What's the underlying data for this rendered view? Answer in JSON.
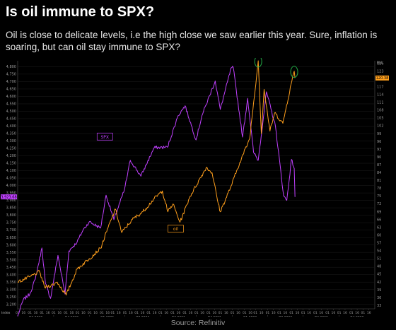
{
  "title": "Is oil immune to SPX?",
  "subtitle": "Oil is close to delicate levels, i.e the high close we saw earlier this year. Sure, inflation is soaring, but can oil stay immune to SPX?",
  "source": "Source: Refinitiv",
  "colors": {
    "spx": "#c040ff",
    "oil": "#ff9f1c",
    "background": "#000000",
    "highlight_circle": "#22a845"
  },
  "chart_data": {
    "type": "line",
    "xlim": [
      "2020-07-01",
      "2022-12-31"
    ],
    "left_axis": {
      "series": "SPX",
      "ticks": [
        3200,
        3250,
        3300,
        3350,
        3400,
        3450,
        3500,
        3550,
        3600,
        3650,
        3700,
        3750,
        3800,
        3850,
        3900,
        3950,
        4000,
        4050,
        4100,
        4150,
        4200,
        4250,
        4300,
        4350,
        4400,
        4450,
        4500,
        4550,
        4600,
        4650,
        4700,
        4750,
        4800
      ],
      "tick_labels": [
        "3,200",
        "3,250",
        "3,300",
        "3,350",
        "3,400",
        "3,450",
        "3,500",
        "3,550",
        "3,600",
        "3,650",
        "3,700",
        "3,750",
        "3,800",
        "3,850",
        "3,900",
        "3,950",
        "4,000",
        "4,050",
        "4,100",
        "4,150",
        "4,200",
        "4,250",
        "4,300",
        "4,350",
        "4,400",
        "4,450",
        "4,500",
        "4,550",
        "4,600",
        "4,650",
        "4,700",
        "4,750",
        "4,800"
      ],
      "ylim": [
        3175,
        4840
      ],
      "unit": "Index",
      "last_value": "3,923.68"
    },
    "right_axis": {
      "series": "oil",
      "ticks": [
        33,
        36,
        39,
        42,
        45,
        48,
        51,
        54,
        57,
        60,
        63,
        66,
        69,
        72,
        75,
        78,
        81,
        84,
        87,
        90,
        93,
        96,
        99,
        102,
        105,
        108,
        111,
        114,
        117,
        120,
        123,
        126
      ],
      "ylim": [
        32,
        127
      ],
      "unit": "Bbl",
      "last_value": "120.38"
    },
    "x_ticks": [
      "01",
      "16",
      "01",
      "16",
      "01",
      "16",
      "01",
      "16",
      "01",
      "16",
      "01",
      "16",
      "01",
      "16",
      "01",
      "16",
      "01",
      "16",
      "01",
      "16",
      "01",
      "16",
      "01",
      "16",
      "01",
      "16",
      "01",
      "16",
      "01",
      "16",
      "01",
      "16",
      "01",
      "16",
      "01",
      "16",
      "01",
      "16",
      "01",
      "16",
      "01",
      "16",
      "01",
      "16",
      "01",
      "16",
      "01",
      "16",
      "01",
      "16",
      "01",
      "16",
      "01",
      "16",
      "01",
      "16",
      "01",
      "16",
      "01",
      "16",
      "01",
      "16"
    ],
    "quarters": [
      "Q3 2020",
      "Q4 2020",
      "Q1 2021",
      "Q2 2021",
      "Q3 2021",
      "Q4 2021",
      "Q1 2022",
      "Q2 2022",
      "Q3 2022",
      "Q4 2022"
    ],
    "series": [
      {
        "name": "SPX",
        "axis": "left",
        "color": "#c040ff",
        "points": [
          [
            "2020-07-01",
            3120
          ],
          [
            "2020-07-15",
            3230
          ],
          [
            "2020-08-01",
            3270
          ],
          [
            "2020-08-15",
            3370
          ],
          [
            "2020-09-01",
            3580
          ],
          [
            "2020-09-10",
            3340
          ],
          [
            "2020-09-23",
            3240
          ],
          [
            "2020-10-12",
            3530
          ],
          [
            "2020-10-30",
            3270
          ],
          [
            "2020-11-09",
            3560
          ],
          [
            "2020-11-30",
            3620
          ],
          [
            "2020-12-15",
            3700
          ],
          [
            "2020-12-31",
            3756
          ],
          [
            "2021-01-29",
            3714
          ],
          [
            "2021-02-12",
            3935
          ],
          [
            "2021-03-04",
            3770
          ],
          [
            "2021-03-31",
            3972
          ],
          [
            "2021-04-15",
            4170
          ],
          [
            "2021-05-12",
            4063
          ],
          [
            "2021-06-15",
            4255
          ],
          [
            "2021-07-19",
            4258
          ],
          [
            "2021-08-15",
            4470
          ],
          [
            "2021-09-02",
            4537
          ],
          [
            "2021-09-30",
            4307
          ],
          [
            "2021-10-15",
            4470
          ],
          [
            "2021-11-18",
            4704
          ],
          [
            "2021-12-01",
            4513
          ],
          [
            "2021-12-29",
            4793
          ],
          [
            "2022-01-03",
            4796
          ],
          [
            "2022-01-27",
            4326
          ],
          [
            "2022-02-09",
            4587
          ],
          [
            "2022-02-24",
            4225
          ],
          [
            "2022-03-08",
            4170
          ],
          [
            "2022-03-29",
            4631
          ],
          [
            "2022-04-21",
            4400
          ],
          [
            "2022-05-12",
            3930
          ],
          [
            "2022-05-20",
            3900
          ],
          [
            "2022-06-01",
            4176
          ],
          [
            "2022-06-08",
            4115
          ],
          [
            "2022-06-10",
            3923
          ]
        ]
      },
      {
        "name": "oil",
        "axis": "right",
        "color": "#ff9f1c",
        "points": [
          [
            "2020-07-01",
            42
          ],
          [
            "2020-08-01",
            44
          ],
          [
            "2020-08-26",
            46
          ],
          [
            "2020-09-08",
            40
          ],
          [
            "2020-09-30",
            41
          ],
          [
            "2020-10-10",
            42
          ],
          [
            "2020-11-02",
            37
          ],
          [
            "2020-11-30",
            47
          ],
          [
            "2020-12-31",
            51
          ],
          [
            "2021-01-29",
            55
          ],
          [
            "2021-02-25",
            66
          ],
          [
            "2021-03-08",
            70
          ],
          [
            "2021-03-24",
            61
          ],
          [
            "2021-04-20",
            66
          ],
          [
            "2021-05-17",
            69
          ],
          [
            "2021-06-15",
            74
          ],
          [
            "2021-07-06",
            77
          ],
          [
            "2021-07-20",
            69
          ],
          [
            "2021-08-02",
            72
          ],
          [
            "2021-08-20",
            65
          ],
          [
            "2021-09-15",
            75
          ],
          [
            "2021-10-26",
            86
          ],
          [
            "2021-11-10",
            84
          ],
          [
            "2021-11-26",
            72
          ],
          [
            "2021-12-01",
            69
          ],
          [
            "2021-12-29",
            79
          ],
          [
            "2022-01-20",
            88
          ],
          [
            "2022-02-14",
            97
          ],
          [
            "2022-03-08",
            127
          ],
          [
            "2022-03-16",
            99
          ],
          [
            "2022-03-23",
            116
          ],
          [
            "2022-04-07",
            100
          ],
          [
            "2022-04-19",
            107
          ],
          [
            "2022-05-10",
            103
          ],
          [
            "2022-05-31",
            118
          ],
          [
            "2022-06-08",
            123
          ],
          [
            "2022-06-10",
            120.4
          ]
        ]
      }
    ],
    "annotations": [
      {
        "text": "SPX",
        "series": "SPX"
      },
      {
        "text": "oil",
        "series": "oil"
      }
    ],
    "highlights": [
      {
        "date": "2022-03-08",
        "axis": "right",
        "value": 127
      },
      {
        "date": "2022-06-08",
        "axis": "right",
        "value": 123
      }
    ]
  }
}
